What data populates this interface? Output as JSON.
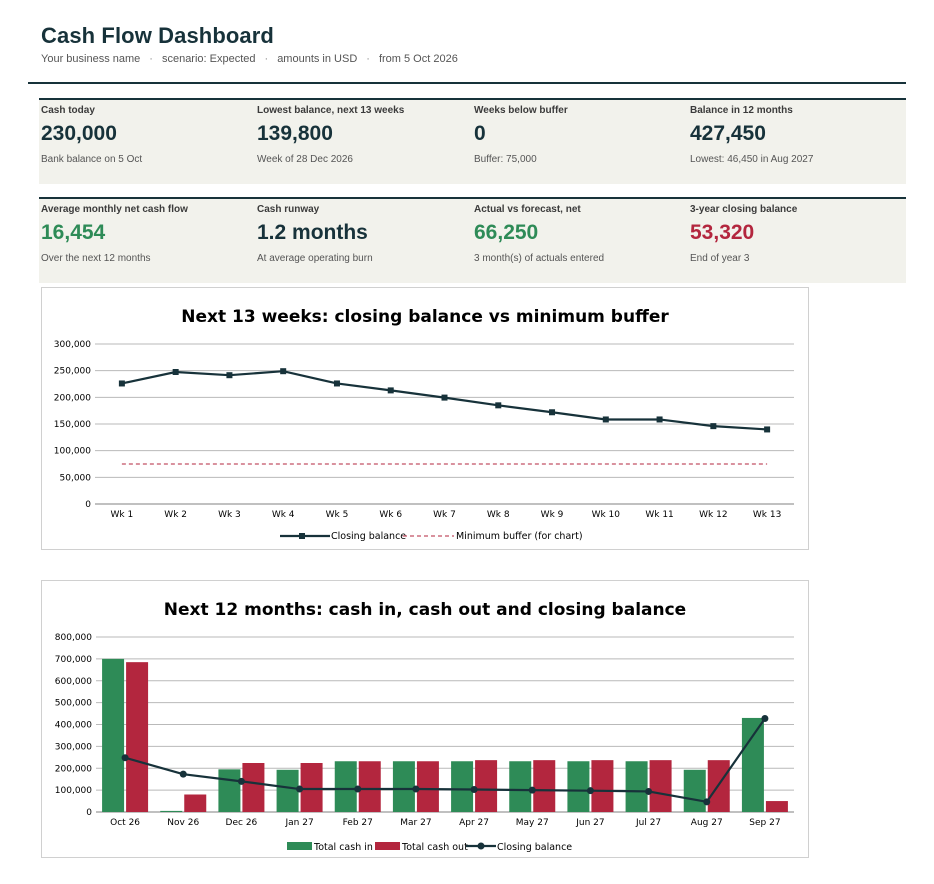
{
  "header": {
    "title": "Cash Flow Dashboard",
    "business": "Your business name",
    "scenario": "scenario: Expected",
    "currency": "amounts in USD",
    "start": "from 5 Oct 2026"
  },
  "kpis_row1": [
    {
      "label": "Cash today",
      "value": "230,000",
      "note": "Bank balance on 5 Oct",
      "tone": "neutral"
    },
    {
      "label": "Lowest balance, next 13 weeks",
      "value": "139,800",
      "note": "Week of 28 Dec 2026",
      "tone": "neutral"
    },
    {
      "label": "Weeks below buffer",
      "value": "0",
      "note": "Buffer: 75,000",
      "tone": "neutral"
    },
    {
      "label": "Balance in 12 months",
      "value": "427,450",
      "note": "Lowest: 46,450 in Aug 2027",
      "tone": "neutral"
    }
  ],
  "kpis_row2": [
    {
      "label": "Average monthly net cash flow",
      "value": "16,454",
      "note": "Over the next 12 months",
      "tone": "positive"
    },
    {
      "label": "Cash runway",
      "value": "1.2 months",
      "note": "At average operating burn",
      "tone": "neutral"
    },
    {
      "label": "Actual vs forecast, net",
      "value": "66,250",
      "note": "3 month(s) of actuals entered",
      "tone": "positive"
    },
    {
      "label": "3-year closing balance",
      "value": "53,320",
      "note": "End of year 3",
      "tone": "negative"
    }
  ],
  "colors": {
    "navy": "#17323a",
    "green": "#2e8b57",
    "red": "#b3263e",
    "band": "#f2f2ec"
  },
  "chart_data": [
    {
      "type": "line",
      "title": "Next 13 weeks: closing balance vs minimum buffer",
      "categories": [
        "Wk 1",
        "Wk 2",
        "Wk 3",
        "Wk 4",
        "Wk 5",
        "Wk 6",
        "Wk 7",
        "Wk 8",
        "Wk 9",
        "Wk 10",
        "Wk 11",
        "Wk 12",
        "Wk 13"
      ],
      "series": [
        {
          "name": "Closing balance",
          "values": [
            226000,
            247500,
            241500,
            249000,
            226000,
            213000,
            199500,
            185000,
            172000,
            158500,
            158500,
            146000,
            139800
          ]
        },
        {
          "name": "Minimum buffer (for chart)",
          "values": [
            75000,
            75000,
            75000,
            75000,
            75000,
            75000,
            75000,
            75000,
            75000,
            75000,
            75000,
            75000,
            75000
          ]
        }
      ],
      "ylim": [
        0,
        300000
      ],
      "yticks": [
        "300,000",
        "250,000",
        "200,000",
        "150,000",
        "100,000",
        "50,000",
        "0"
      ],
      "grid": true,
      "legend": "bottom"
    },
    {
      "type": "bar",
      "title": "Next 12 months: cash in, cash out and closing balance",
      "categories": [
        "Oct 26",
        "Nov 26",
        "Dec 26",
        "Jan 27",
        "Feb 27",
        "Mar 27",
        "Apr 27",
        "May 27",
        "Jun 27",
        "Jul 27",
        "Aug 27",
        "Sep 27"
      ],
      "series": [
        {
          "name": "Total cash in",
          "kind": "bar",
          "values": [
            700000,
            5000,
            195000,
            193000,
            232000,
            232000,
            232000,
            232000,
            232000,
            232000,
            193000,
            430000
          ]
        },
        {
          "name": "Total cash out",
          "kind": "bar",
          "values": [
            685000,
            80000,
            224000,
            224000,
            232000,
            232000,
            237000,
            237000,
            237000,
            237000,
            237000,
            50000
          ]
        },
        {
          "name": "Closing balance",
          "kind": "line",
          "values": [
            248000,
            173000,
            140000,
            105000,
            105000,
            105000,
            103000,
            100000,
            97500,
            94000,
            46450,
            427450
          ]
        }
      ],
      "ylim": [
        0,
        800000
      ],
      "yticks": [
        "800,000",
        "700,000",
        "600,000",
        "500,000",
        "400,000",
        "300,000",
        "200,000",
        "100,000",
        "0"
      ],
      "grid": true,
      "legend": "bottom"
    }
  ]
}
